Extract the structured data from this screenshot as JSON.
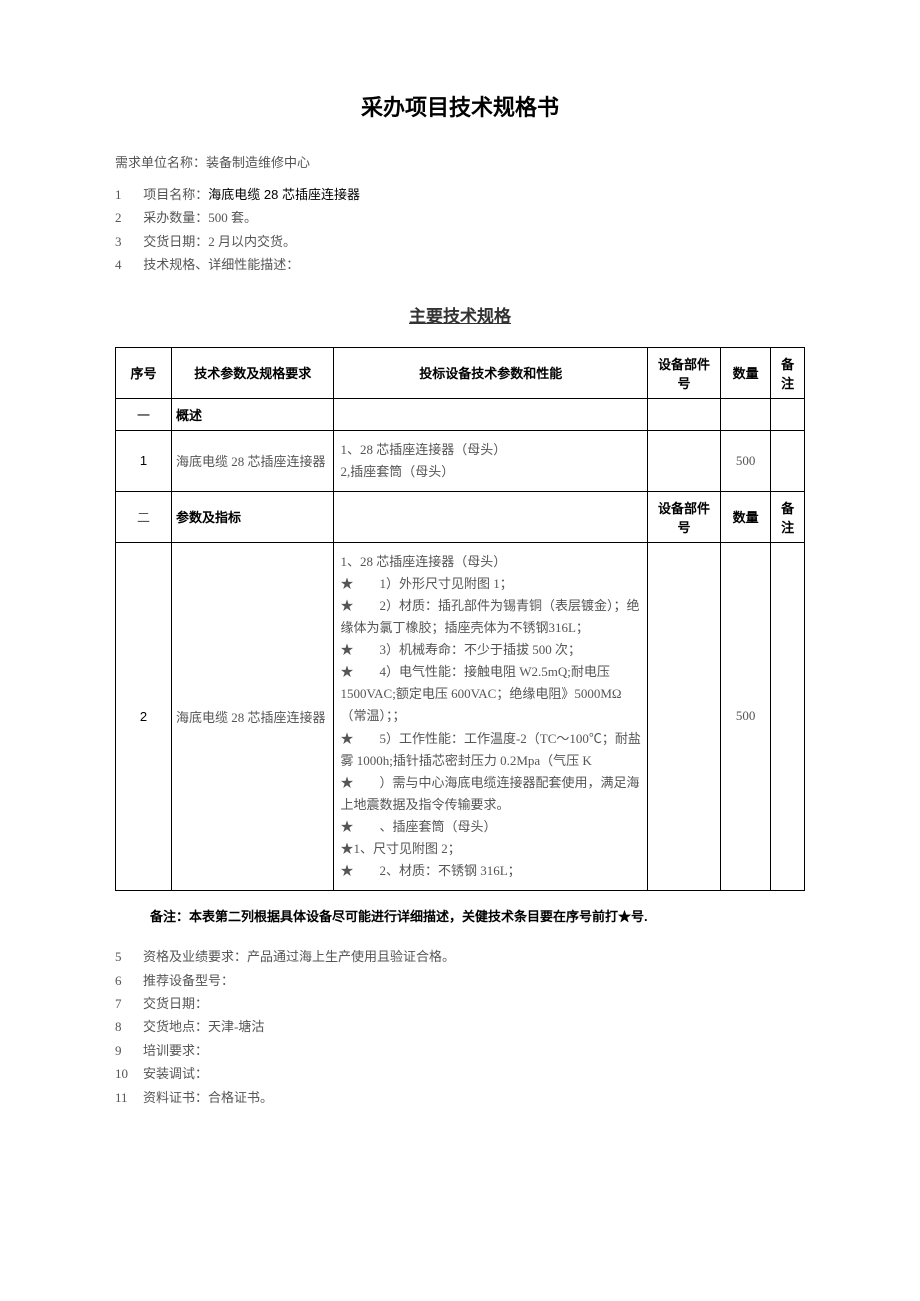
{
  "title": "采办项目技术规格书",
  "org_label": "需求单位名称：",
  "org_value": "装备制造维修中心",
  "meta": [
    {
      "num": "1",
      "label": "项目名称：",
      "value": "海底电缆 28 芯插座连接器",
      "bold": true
    },
    {
      "num": "2",
      "label": "采办数量：",
      "value": "500 套。",
      "bold": false
    },
    {
      "num": "3",
      "label": "交货日期：",
      "value": "2 月以内交货。",
      "bold": false
    },
    {
      "num": "4",
      "label": "技术规格、详细性能描述：",
      "value": "",
      "bold": false
    }
  ],
  "section_title": "主要技术规格",
  "table": {
    "headers": {
      "seq": "序号",
      "param": "技术参数及规格要求",
      "tech": "投标设备技术参数和性能",
      "part": "设备部件号",
      "qty": "数量",
      "note": "备注"
    },
    "row_overview": {
      "seq": "一",
      "label": "概述"
    },
    "row1": {
      "seq": "1",
      "param": "海底电缆 28 芯插座连接器",
      "tech_line1": "1、28 芯插座连接器（母头）",
      "tech_line2": "2,插座套筒（母头）",
      "qty": "500"
    },
    "row_params": {
      "seq": "二",
      "label": "参数及指标",
      "part": "设备部件号",
      "qty": "数量",
      "note": "备注"
    },
    "row2": {
      "seq": "2",
      "param": "海底电缆 28 芯插座连接器",
      "qty": "500",
      "tech": {
        "l1": "1、28 芯插座连接器（母头）",
        "l2": "★　　1）外形尺寸见附图 1；",
        "l3": "★　　2）材质：插孔部件为锡青铜（表层镀金）；绝缘体为氯丁橡胶；插座壳体为不锈钢316L；",
        "l4": "★　　3）机械寿命：不少于插拔 500 次；",
        "l5": "★　　4）电气性能：接触电阻 W2.5mQ;耐电压1500VAC;额定电压 600VAC；绝缘电阻》5000MΩ（常温）；；",
        "l6": "★　　5）工作性能：工作温度-2（TC～100℃；耐盐雾 1000h;插针插芯密封压力 0.2Mpa（气压 K",
        "l7": "★　　）需与中心海底电缆连接器配套使用，满足海上地震数据及指令传输要求。",
        "l8": "★　　、插座套筒（母头）",
        "l9": "★1、尺寸见附图 2；",
        "l10": "★　　2、材质：不锈钢 316L；"
      }
    }
  },
  "footer_note": "备注：本表第二列根据具体设备尽可能进行详细描述，关健技术条目要在序号前打★号.",
  "bottom": [
    {
      "num": "5",
      "text": "资格及业绩要求：产品通过海上生产使用且验证合格。"
    },
    {
      "num": "6",
      "text": "推荐设备型号："
    },
    {
      "num": "7",
      "text": "交货日期："
    },
    {
      "num": "8",
      "text": "交货地点：天津-塘沽"
    },
    {
      "num": "9",
      "text": "培训要求："
    },
    {
      "num": "10",
      "text": "安装调试："
    },
    {
      "num": "11",
      "text": "资料证书：合格证书。"
    }
  ]
}
